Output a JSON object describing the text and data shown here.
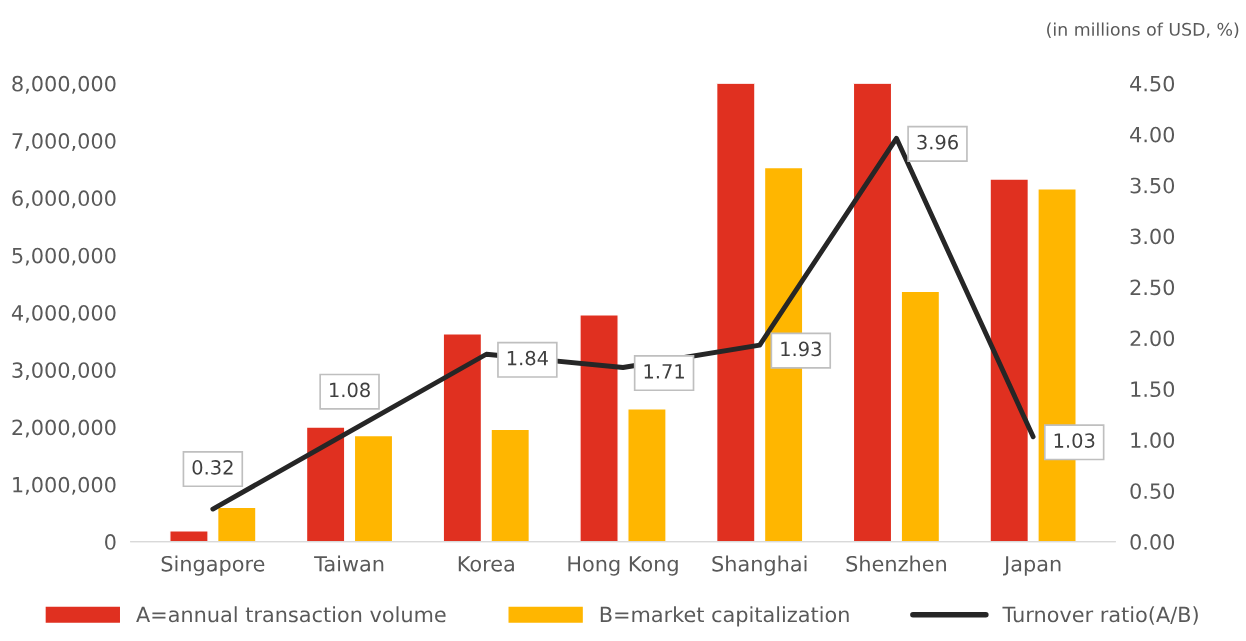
{
  "chart_data": {
    "type": "bar",
    "categories": [
      "Singapore",
      "Taiwan",
      "Korea",
      "Hong Kong",
      "Shanghai",
      "Shenzhen",
      "Japan"
    ],
    "series": [
      {
        "name": "A=annual transaction volume",
        "color": "#e03020",
        "values": [
          190000,
          2000000,
          3630000,
          3960000,
          8000000,
          8000000,
          6330000
        ]
      },
      {
        "name": "B=market capitalization",
        "color": "#ffb600",
        "values": [
          600000,
          1850000,
          1960000,
          2320000,
          6530000,
          4370000,
          6160000
        ]
      },
      {
        "name": "Turnover ratio(A/B)",
        "type": "line",
        "axis": "y2",
        "color": "#262626",
        "values": [
          0.32,
          1.08,
          1.84,
          1.71,
          1.93,
          3.96,
          1.03
        ],
        "value_labels": [
          "0.32",
          "1.08",
          "1.84",
          "1.71",
          "1.93",
          "3.96",
          "1.03"
        ]
      }
    ],
    "ylim": [
      0,
      8000000
    ],
    "yticks": [
      {
        "value": 0,
        "label": "0"
      },
      {
        "value": 1000000,
        "label": "1,000,000"
      },
      {
        "value": 2000000,
        "label": "2,000,000"
      },
      {
        "value": 3000000,
        "label": "3,000,000"
      },
      {
        "value": 4000000,
        "label": "4,000,000"
      },
      {
        "value": 5000000,
        "label": "5,000,000"
      },
      {
        "value": 6000000,
        "label": "6,000,000"
      },
      {
        "value": 7000000,
        "label": "7,000,000"
      },
      {
        "value": 8000000,
        "label": "8,000,000"
      }
    ],
    "y2lim": [
      0,
      4.5
    ],
    "y2ticks": [
      {
        "value": 0,
        "label": "0.00"
      },
      {
        "value": 0.5,
        "label": "0.50"
      },
      {
        "value": 1,
        "label": "1.00"
      },
      {
        "value": 1.5,
        "label": "1.50"
      },
      {
        "value": 2,
        "label": "2.00"
      },
      {
        "value": 2.5,
        "label": "2.50"
      },
      {
        "value": 3,
        "label": "3.00"
      },
      {
        "value": 3.5,
        "label": "3.50"
      },
      {
        "value": 4,
        "label": "4.00"
      },
      {
        "value": 4.5,
        "label": "4.50"
      }
    ],
    "annotations": [
      "(in millions of USD, %)"
    ],
    "legend": "bottom",
    "grid": false,
    "marker": "none",
    "line_style": "solid"
  }
}
